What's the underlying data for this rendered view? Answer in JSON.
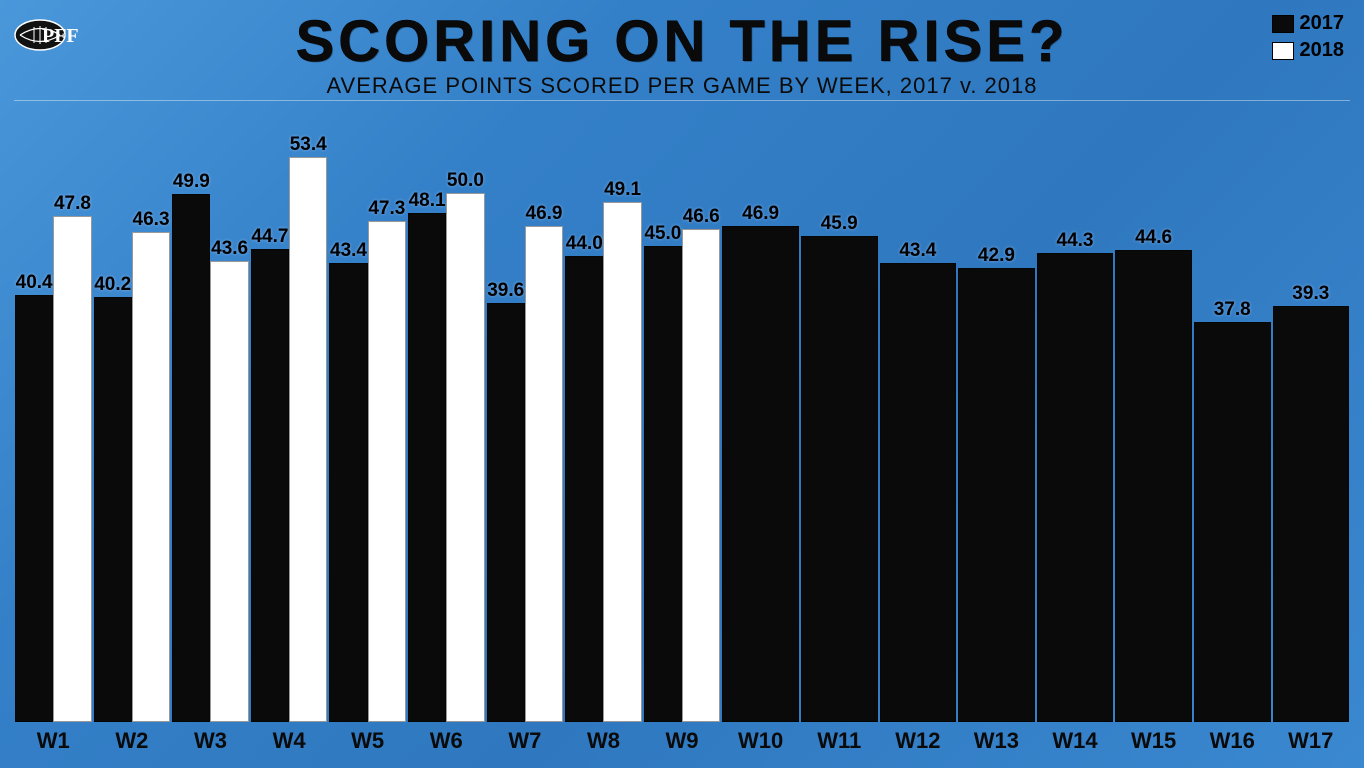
{
  "logo_text": "PFF",
  "title": "SCORING ON THE RISE?",
  "subtitle": "AVERAGE POINTS SCORED PER GAME BY WEEK, 2017 v. 2018",
  "legend": {
    "y2017_label": "2017",
    "y2018_label": "2018",
    "y2017_color": "#0a0a0a",
    "y2018_color": "#ffffff"
  },
  "chart": {
    "type": "bar",
    "ylim": [
      0,
      55
    ],
    "background_color": "#3c8ed4",
    "bar_colors": {
      "2017": "#0a0a0a",
      "2018": "#ffffff"
    },
    "label_fontsize": 19,
    "axis_label_fontsize": 22,
    "weeks": [
      {
        "label": "W1",
        "y2017": 40.4,
        "y2018": 47.8
      },
      {
        "label": "W2",
        "y2017": 40.2,
        "y2018": 46.3
      },
      {
        "label": "W3",
        "y2017": 49.9,
        "y2018": 43.6
      },
      {
        "label": "W4",
        "y2017": 44.7,
        "y2018": 53.4
      },
      {
        "label": "W5",
        "y2017": 43.4,
        "y2018": 47.3
      },
      {
        "label": "W6",
        "y2017": 48.1,
        "y2018": 50.0
      },
      {
        "label": "W7",
        "y2017": 39.6,
        "y2018": 46.9
      },
      {
        "label": "W8",
        "y2017": 44.0,
        "y2018": 49.1
      },
      {
        "label": "W9",
        "y2017": 45.0,
        "y2018": 46.6
      },
      {
        "label": "W10",
        "y2017": 46.9,
        "y2018": null
      },
      {
        "label": "W11",
        "y2017": 45.9,
        "y2018": null
      },
      {
        "label": "W12",
        "y2017": 43.4,
        "y2018": null
      },
      {
        "label": "W13",
        "y2017": 42.9,
        "y2018": null
      },
      {
        "label": "W14",
        "y2017": 44.3,
        "y2018": null
      },
      {
        "label": "W15",
        "y2017": 44.6,
        "y2018": null
      },
      {
        "label": "W16",
        "y2017": 37.8,
        "y2018": null
      },
      {
        "label": "W17",
        "y2017": 39.3,
        "y2018": null
      }
    ]
  }
}
